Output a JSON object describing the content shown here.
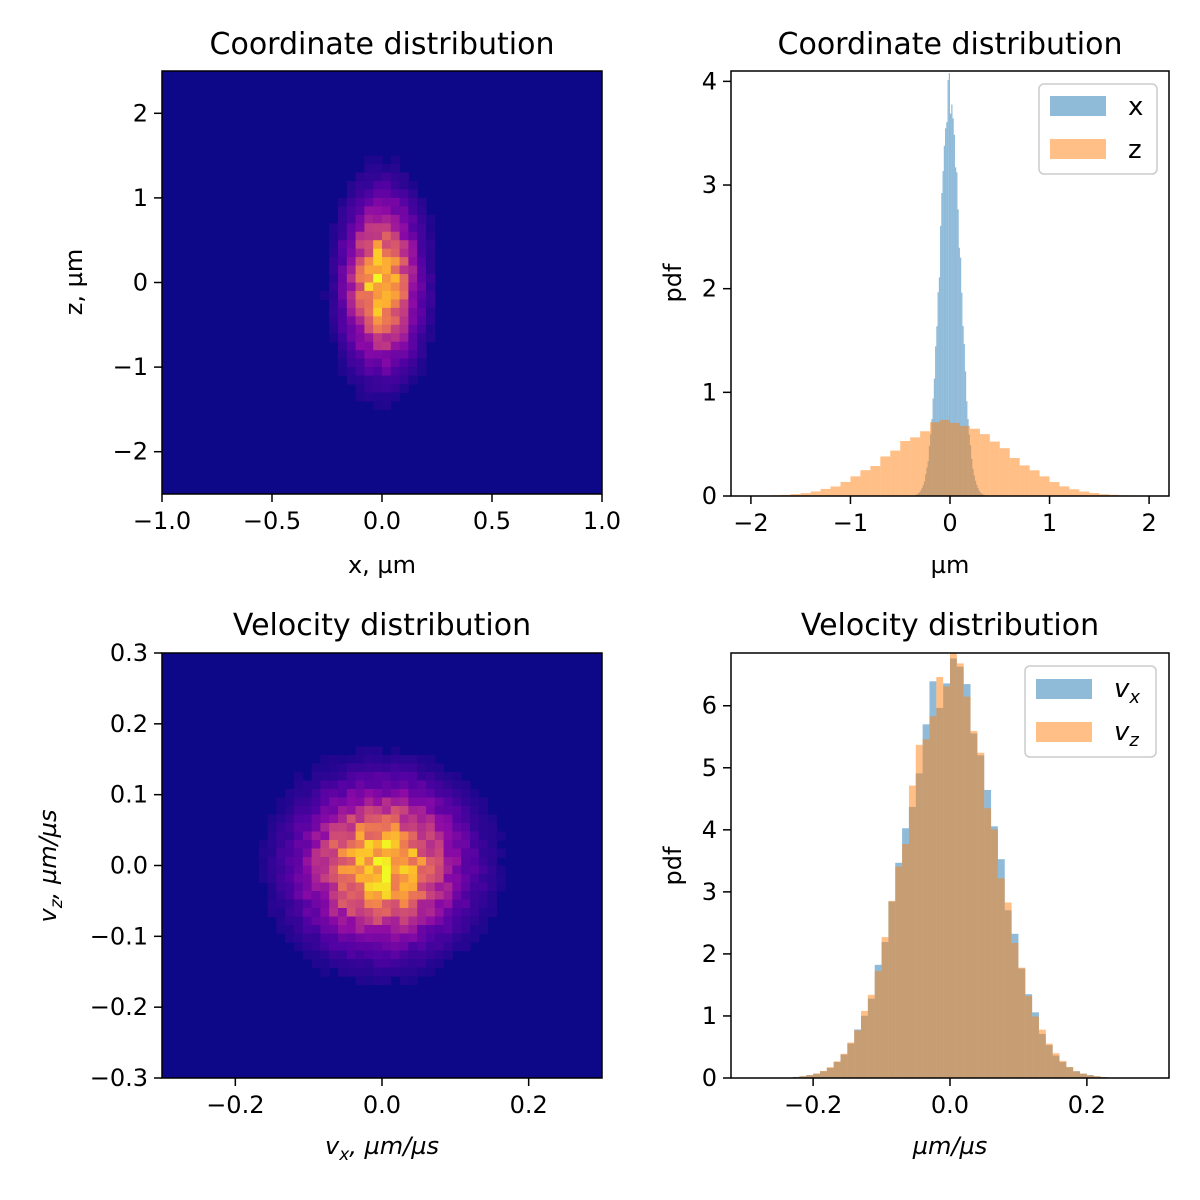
{
  "charts": [
    {
      "id": "coord-heatmap",
      "title": "Coordinate distribution",
      "xlabel": "x, µm",
      "ylabel": "z, µm",
      "xticks": [
        "−1.0",
        "−0.5",
        "0.0",
        "0.5",
        "1.0"
      ],
      "yticks": [
        "−2",
        "−1",
        "0",
        "1",
        "2"
      ]
    },
    {
      "id": "coord-hist",
      "title": "Coordinate distribution",
      "xlabel": "µm",
      "ylabel": "pdf",
      "xticks": [
        "−2",
        "−1",
        "0",
        "1",
        "2"
      ],
      "yticks": [
        "0",
        "1",
        "2",
        "3",
        "4"
      ],
      "legend": [
        "x",
        "z"
      ]
    },
    {
      "id": "vel-heatmap",
      "title": "Velocity distribution",
      "xlabel_var": "v",
      "xlabel_sub": "x",
      "xlabel_rest": ", µm/µs",
      "ylabel_var": "v",
      "ylabel_sub": "z",
      "ylabel_rest": ", µm/µs",
      "xticks": [
        "−0.2",
        "0.0",
        "0.2"
      ],
      "yticks": [
        "−0.3",
        "−0.2",
        "−0.1",
        "0.0",
        "0.1",
        "0.2",
        "0.3"
      ]
    },
    {
      "id": "vel-hist",
      "title": "Velocity distribution",
      "xlabel": "µm/µs",
      "ylabel": "pdf",
      "xticks": [
        "−0.2",
        "0.0",
        "0.2"
      ],
      "yticks": [
        "0",
        "1",
        "2",
        "3",
        "4",
        "5",
        "6"
      ],
      "legend_var": [
        "v",
        "v"
      ],
      "legend_sub": [
        "x",
        "z"
      ]
    }
  ],
  "chart_data": [
    {
      "type": "heatmap",
      "title": "Coordinate distribution",
      "xlabel": "x, µm",
      "ylabel": "z, µm",
      "xlim": [
        -1.0,
        1.0
      ],
      "ylim": [
        -2.5,
        2.5
      ],
      "colormap": "plasma",
      "distribution": {
        "x_mean": 0.0,
        "x_std": 0.1,
        "z_mean": 0.0,
        "z_std": 0.57
      }
    },
    {
      "type": "bar",
      "subtype": "histogram",
      "title": "Coordinate distribution",
      "xlabel": "µm",
      "ylabel": "pdf",
      "xlim": [
        -2.2,
        2.2
      ],
      "ylim": [
        0,
        4.1
      ],
      "legend_position": "top-right",
      "series": [
        {
          "name": "x",
          "color": "#1f77b4",
          "alpha": 0.5,
          "bin_width": 0.0125,
          "bin_range": [
            -0.5,
            0.5
          ],
          "distribution": {
            "mean": 0.0,
            "std": 0.1,
            "peak_pdf": 3.9
          }
        },
        {
          "name": "z",
          "color": "#ff7f0e",
          "alpha": 0.5,
          "bin_width": 0.1,
          "bin_range": [
            -2.0,
            2.0
          ],
          "distribution": {
            "mean": 0.0,
            "std": 0.57,
            "peak_pdf": 0.72
          }
        }
      ]
    },
    {
      "type": "heatmap",
      "title": "Velocity distribution",
      "xlabel": "v_x, µm/µs",
      "ylabel": "v_z, µm/µs",
      "xlim": [
        -0.3,
        0.3
      ],
      "ylim": [
        -0.3,
        0.3
      ],
      "colormap": "plasma",
      "distribution": {
        "vx_mean": 0.0,
        "vx_std": 0.065,
        "vz_mean": 0.0,
        "vz_std": 0.065
      }
    },
    {
      "type": "bar",
      "subtype": "histogram",
      "title": "Velocity distribution",
      "xlabel": "µm/µs",
      "ylabel": "pdf",
      "xlim": [
        -0.32,
        0.32
      ],
      "ylim": [
        0,
        6.85
      ],
      "legend_position": "top-right",
      "series": [
        {
          "name": "v_x",
          "color": "#1f77b4",
          "alpha": 0.5,
          "bin_width": 0.01,
          "bin_range": [
            -0.3,
            0.3
          ],
          "distribution": {
            "mean": 0.0,
            "std": 0.065,
            "peak_pdf": 6.5
          }
        },
        {
          "name": "v_z",
          "color": "#ff7f0e",
          "alpha": 0.5,
          "bin_width": 0.01,
          "bin_range": [
            -0.3,
            0.3
          ],
          "distribution": {
            "mean": 0.0,
            "std": 0.065,
            "peak_pdf": 6.55
          }
        }
      ]
    }
  ]
}
